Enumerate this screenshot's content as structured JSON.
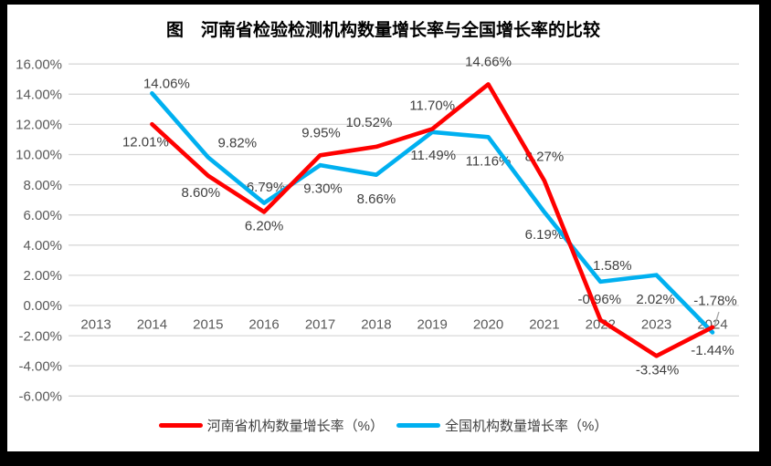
{
  "title": "图　河南省检验检测机构数量增长率与全国增长率的比较",
  "chart_data": {
    "type": "line",
    "title": "图　河南省检验检测机构数量增长率与全国增长率的比较",
    "categories": [
      "2013",
      "2014",
      "2015",
      "2016",
      "2017",
      "2018",
      "2019",
      "2020",
      "2021",
      "2022",
      "2023",
      "2024"
    ],
    "series": [
      {
        "name": "河南省机构数量增长率（%）",
        "color": "#FF0000",
        "values": [
          null,
          12.01,
          8.6,
          6.2,
          9.95,
          10.52,
          11.7,
          14.66,
          8.27,
          -0.96,
          -3.34,
          -1.44
        ],
        "labels": [
          null,
          "12.01%",
          "8.60%",
          "6.20%",
          "9.95%",
          "10.52%",
          "11.70%",
          "14.66%",
          "8.27%",
          "-0.96%",
          "-3.34%",
          "-1.44%"
        ],
        "label_offsets": [
          null,
          [
            -7,
            19
          ],
          [
            -8,
            18
          ],
          [
            0,
            15
          ],
          [
            1,
            -25
          ],
          [
            -8,
            -27
          ],
          [
            0,
            -26
          ],
          [
            0,
            -25
          ],
          [
            0,
            -27
          ],
          [
            -1,
            -23
          ],
          [
            1,
            15
          ],
          [
            0,
            25
          ]
        ]
      },
      {
        "name": "全国机构数量增长率（%）",
        "color": "#00B0F0",
        "values": [
          null,
          14.06,
          9.82,
          6.79,
          9.3,
          8.66,
          11.49,
          11.16,
          6.19,
          1.58,
          2.02,
          -1.78
        ],
        "labels": [
          null,
          "14.06%",
          "9.82%",
          "6.79%",
          "9.30%",
          "8.66%",
          "11.49%",
          "11.16%",
          "6.19%",
          "1.58%",
          "2.02%",
          "-1.78%"
        ],
        "label_offsets": [
          null,
          [
            16,
            -11
          ],
          [
            32,
            -16
          ],
          [
            2,
            -18
          ],
          [
            3,
            25
          ],
          [
            0,
            26
          ],
          [
            1,
            25
          ],
          [
            0,
            26
          ],
          [
            0,
            24
          ],
          [
            13,
            -18
          ],
          [
            -1,
            26
          ],
          [
            3,
            -35
          ]
        ]
      }
    ],
    "ylim": [
      -6,
      16
    ],
    "ytick_step": 2,
    "y_tick_labels": [
      "16.00%",
      "14.00%",
      "12.00%",
      "10.00%",
      "8.00%",
      "6.00%",
      "4.00%",
      "2.00%",
      "0.00%",
      "-2.00%",
      "-4.00%",
      "-6.00%"
    ],
    "grid": true,
    "legend_position": "bottom",
    "colors": {
      "gridline": "#D9D9D9",
      "axis_text": "#595959",
      "data_label_text": "#404040",
      "leader_line": "#A6A6A6",
      "background": "#FFFFFF",
      "frame_border": "#000000"
    }
  }
}
